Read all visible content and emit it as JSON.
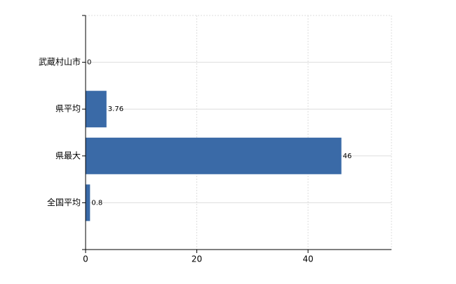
{
  "chart_data": {
    "type": "bar",
    "orientation": "horizontal",
    "categories": [
      "武蔵村山市",
      "県平均",
      "県最大",
      "全国平均"
    ],
    "values": [
      0,
      3.76,
      46,
      0.8
    ],
    "color": "#3a6aa7",
    "xlim": [
      0,
      55
    ],
    "xticks": [
      0,
      20,
      40
    ],
    "grid": true
  }
}
